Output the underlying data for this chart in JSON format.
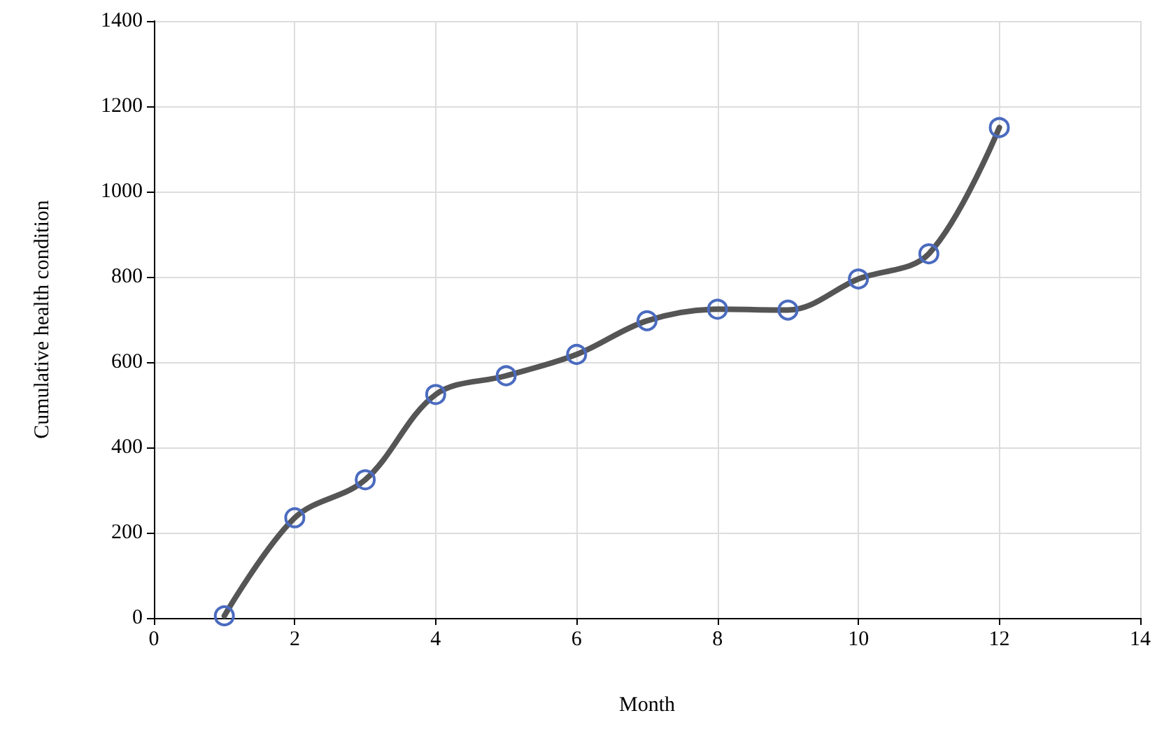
{
  "chart_data": {
    "type": "line",
    "xlabel": "Month",
    "ylabel": "Cumulative health condition",
    "x": [
      1,
      2,
      3,
      4,
      5,
      6,
      7,
      8,
      9,
      10,
      11,
      12
    ],
    "series": [
      {
        "color": "#555555",
        "values": [
          5,
          235,
          324,
          524,
          568,
          618,
          697,
          724,
          722,
          795,
          854,
          1150
        ]
      }
    ],
    "xlim": [
      0,
      14
    ],
    "xticks": [
      0,
      2,
      4,
      6,
      8,
      10,
      12,
      14
    ],
    "ylim": [
      0,
      1400
    ],
    "yticks": [
      0,
      200,
      400,
      600,
      800,
      1000,
      1200,
      1400
    ],
    "grid": true,
    "marker": "circle",
    "line_style": "solid"
  }
}
